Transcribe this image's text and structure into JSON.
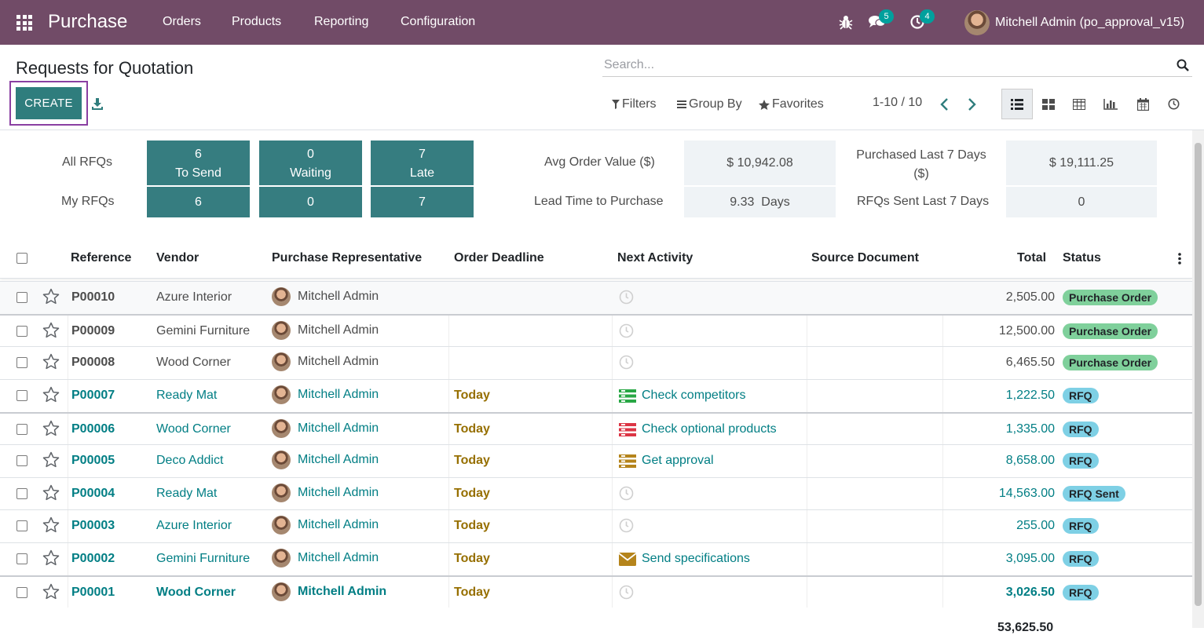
{
  "navbar": {
    "app_name": "Purchase",
    "menu": [
      "Orders",
      "Products",
      "Reporting",
      "Configuration"
    ],
    "messages_badge": "5",
    "activities_badge": "4",
    "user_name": "Mitchell Admin (po_approval_v15)",
    "bg_color": "#714b67"
  },
  "control_panel": {
    "title": "Requests for Quotation",
    "create_label": "CREATE",
    "search_placeholder": "Search...",
    "filters_label": "Filters",
    "groupby_label": "Group By",
    "favorites_label": "Favorites",
    "pager": "1-10 / 10"
  },
  "dashboard": {
    "rows": [
      {
        "label": "All RFQs",
        "tiles": [
          {
            "value": "6",
            "caption": "To Send"
          },
          {
            "value": "0",
            "caption": "Waiting"
          },
          {
            "value": "7",
            "caption": "Late"
          }
        ]
      },
      {
        "label": "My RFQs",
        "tiles": [
          {
            "value": "6"
          },
          {
            "value": "0"
          },
          {
            "value": "7"
          }
        ]
      }
    ],
    "kpis": [
      {
        "label": "Avg Order Value ($)",
        "value": "$ 10,942.08"
      },
      {
        "label": "Purchased Last 7 Days ($)",
        "value": "$ 19,111.25"
      },
      {
        "label": "Lead Time to Purchase",
        "value": "9.33  Days"
      },
      {
        "label": "RFQs Sent Last 7 Days",
        "value": "0"
      }
    ],
    "tile_color": "#367d80"
  },
  "table": {
    "columns": [
      "Reference",
      "Vendor",
      "Purchase Representative",
      "Order Deadline",
      "Next Activity",
      "Source Document",
      "Total",
      "Status"
    ],
    "rows": [
      {
        "ref": "P00010",
        "vendor": "Azure Interior",
        "rep": "Mitchell Admin",
        "deadline": "",
        "activity": "",
        "activity_icon": "clock-icon",
        "total": "2,505.00",
        "status": "Purchase Order"
      },
      {
        "ref": "P00009",
        "vendor": "Gemini Furniture",
        "rep": "Mitchell Admin",
        "deadline": "",
        "activity": "",
        "activity_icon": "clock-icon",
        "total": "12,500.00",
        "status": "Purchase Order"
      },
      {
        "ref": "P00008",
        "vendor": "Wood Corner",
        "rep": "Mitchell Admin",
        "deadline": "",
        "activity": "",
        "activity_icon": "clock-icon",
        "total": "6,465.50",
        "status": "Purchase Order"
      },
      {
        "ref": "P00007",
        "vendor": "Ready Mat",
        "rep": "Mitchell Admin",
        "deadline": "Today",
        "activity": "Check competitors",
        "activity_icon": "tasks-icon-green",
        "total": "1,222.50",
        "status": "RFQ"
      },
      {
        "ref": "P00006",
        "vendor": "Wood Corner",
        "rep": "Mitchell Admin",
        "deadline": "Today",
        "activity": "Check optional products",
        "activity_icon": "tasks-icon-red",
        "total": "1,335.00",
        "status": "RFQ"
      },
      {
        "ref": "P00005",
        "vendor": "Deco Addict",
        "rep": "Mitchell Admin",
        "deadline": "Today",
        "activity": "Get approval",
        "activity_icon": "tasks-icon-orange",
        "total": "8,658.00",
        "status": "RFQ"
      },
      {
        "ref": "P00004",
        "vendor": "Ready Mat",
        "rep": "Mitchell Admin",
        "deadline": "Today",
        "activity": "",
        "activity_icon": "clock-icon",
        "total": "14,563.00",
        "status": "RFQ Sent"
      },
      {
        "ref": "P00003",
        "vendor": "Azure Interior",
        "rep": "Mitchell Admin",
        "deadline": "Today",
        "activity": "",
        "activity_icon": "clock-icon",
        "total": "255.00",
        "status": "RFQ"
      },
      {
        "ref": "P00002",
        "vendor": "Gemini Furniture",
        "rep": "Mitchell Admin",
        "deadline": "Today",
        "activity": "Send specifications",
        "activity_icon": "envelope-icon",
        "total": "3,095.00",
        "status": "RFQ"
      },
      {
        "ref": "P00001",
        "vendor": "Wood Corner",
        "rep": "Mitchell Admin",
        "deadline": "Today",
        "activity": "",
        "activity_icon": "clock-icon",
        "total": "3,026.50",
        "status": "RFQ"
      }
    ],
    "grand_total": "53,625.50"
  }
}
